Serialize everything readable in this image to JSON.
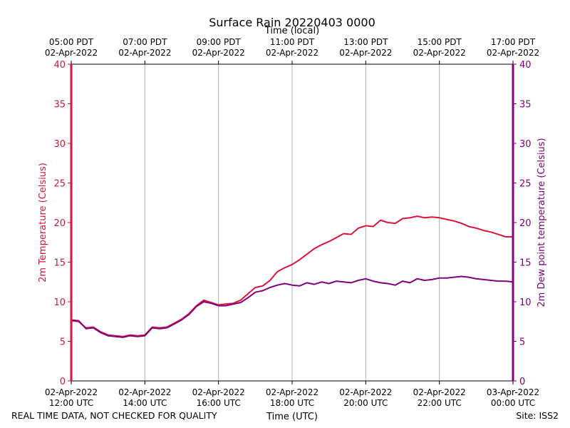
{
  "chart_data": {
    "type": "line",
    "title": "Surface Rain 20220403 0000",
    "xlabel": "Time (UTC)",
    "xlabel_top": "Time (local)",
    "ylabel_left": "2m Temperature (Celsius)",
    "ylabel_right": "2m Dew point temperature (Celsius)",
    "ylim": [
      0,
      40
    ],
    "y_ticks": [
      "0",
      "5",
      "10",
      "15",
      "20",
      "25",
      "30",
      "35",
      "40"
    ],
    "x_range_hours_utc": [
      12,
      24
    ],
    "x_ticks_bottom": [
      {
        "h": 12,
        "line1": "02-Apr-2022",
        "line2": "12:00 UTC"
      },
      {
        "h": 14,
        "line1": "02-Apr-2022",
        "line2": "14:00 UTC"
      },
      {
        "h": 16,
        "line1": "02-Apr-2022",
        "line2": "16:00 UTC"
      },
      {
        "h": 18,
        "line1": "02-Apr-2022",
        "line2": "18:00 UTC"
      },
      {
        "h": 20,
        "line1": "02-Apr-2022",
        "line2": "20:00 UTC"
      },
      {
        "h": 22,
        "line1": "02-Apr-2022",
        "line2": "22:00 UTC"
      },
      {
        "h": 24,
        "line1": "03-Apr-2022",
        "line2": "00:00 UTC"
      }
    ],
    "x_ticks_top": [
      {
        "h": 12,
        "line1": "05:00 PDT",
        "line2": "02-Apr-2022"
      },
      {
        "h": 14,
        "line1": "07:00 PDT",
        "line2": "02-Apr-2022"
      },
      {
        "h": 16,
        "line1": "09:00 PDT",
        "line2": "02-Apr-2022"
      },
      {
        "h": 18,
        "line1": "11:00 PDT",
        "line2": "02-Apr-2022"
      },
      {
        "h": 20,
        "line1": "13:00 PDT",
        "line2": "02-Apr-2022"
      },
      {
        "h": 22,
        "line1": "15:00 PDT",
        "line2": "02-Apr-2022"
      },
      {
        "h": 24,
        "line1": "17:00 PDT",
        "line2": "02-Apr-2022"
      }
    ],
    "grid": "vertical",
    "colors": {
      "temperature": "#dc143c",
      "dewpoint": "#800080"
    },
    "series": [
      {
        "key": "temperature",
        "x": [
          12.0,
          12.2,
          12.4,
          12.6,
          12.8,
          13.0,
          13.2,
          13.4,
          13.6,
          13.8,
          14.0,
          14.2,
          14.4,
          14.6,
          14.8,
          15.0,
          15.2,
          15.4,
          15.6,
          15.8,
          16.0,
          16.2,
          16.4,
          16.6,
          16.8,
          17.0,
          17.2,
          17.4,
          17.6,
          17.8,
          18.0,
          18.2,
          18.4,
          18.6,
          18.8,
          19.0,
          19.2,
          19.4,
          19.6,
          19.8,
          20.0,
          20.2,
          20.4,
          20.6,
          20.8,
          21.0,
          21.2,
          21.4,
          21.6,
          21.8,
          22.0,
          22.2,
          22.4,
          22.6,
          22.8,
          23.0,
          23.2,
          23.4,
          23.6,
          23.8,
          24.0
        ],
        "values": [
          7.6,
          7.5,
          6.7,
          6.8,
          6.2,
          5.8,
          5.7,
          5.6,
          5.8,
          5.7,
          5.8,
          6.8,
          6.7,
          6.8,
          7.3,
          7.8,
          8.5,
          9.5,
          10.2,
          9.9,
          9.6,
          9.7,
          9.8,
          10.2,
          11.0,
          11.8,
          12.0,
          12.7,
          13.8,
          14.3,
          14.7,
          15.3,
          16.0,
          16.7,
          17.2,
          17.6,
          18.1,
          18.6,
          18.5,
          19.3,
          19.6,
          19.5,
          20.3,
          20.0,
          19.9,
          20.5,
          20.6,
          20.8,
          20.6,
          20.7,
          20.6,
          20.4,
          20.2,
          19.9,
          19.5,
          19.3,
          19.0,
          18.8,
          18.5,
          18.2,
          18.2
        ]
      },
      {
        "key": "dewpoint",
        "x": [
          12.0,
          12.2,
          12.4,
          12.6,
          12.8,
          13.0,
          13.2,
          13.4,
          13.6,
          13.8,
          14.0,
          14.2,
          14.4,
          14.6,
          14.8,
          15.0,
          15.2,
          15.4,
          15.6,
          15.8,
          16.0,
          16.2,
          16.4,
          16.6,
          16.8,
          17.0,
          17.2,
          17.4,
          17.6,
          17.8,
          18.0,
          18.2,
          18.4,
          18.6,
          18.8,
          19.0,
          19.2,
          19.4,
          19.6,
          19.8,
          20.0,
          20.2,
          20.4,
          20.6,
          20.8,
          21.0,
          21.2,
          21.4,
          21.6,
          21.8,
          22.0,
          22.2,
          22.4,
          22.6,
          22.8,
          23.0,
          23.2,
          23.4,
          23.6,
          23.8,
          24.0
        ],
        "values": [
          7.7,
          7.6,
          6.6,
          6.7,
          6.1,
          5.7,
          5.6,
          5.5,
          5.7,
          5.6,
          5.7,
          6.7,
          6.6,
          6.7,
          7.2,
          7.7,
          8.4,
          9.4,
          10.0,
          9.8,
          9.5,
          9.5,
          9.7,
          9.9,
          10.5,
          11.2,
          11.4,
          11.8,
          12.1,
          12.3,
          12.1,
          12.0,
          12.4,
          12.2,
          12.5,
          12.3,
          12.6,
          12.5,
          12.4,
          12.7,
          12.9,
          12.6,
          12.4,
          12.3,
          12.1,
          12.6,
          12.4,
          12.9,
          12.7,
          12.8,
          13.0,
          13.0,
          13.1,
          13.2,
          13.1,
          12.9,
          12.8,
          12.7,
          12.6,
          12.6,
          12.5
        ]
      }
    ]
  },
  "footer": {
    "left": "REAL TIME DATA, NOT CHECKED FOR QUALITY",
    "right": "Site: ISS2"
  }
}
